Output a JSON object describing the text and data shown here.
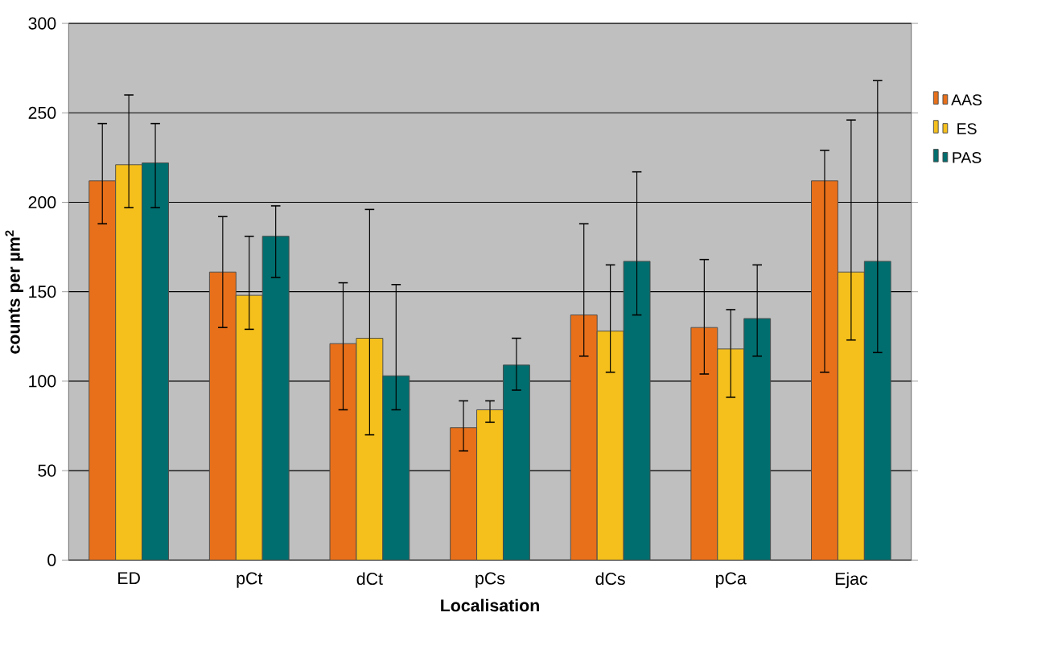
{
  "chart_data": {
    "type": "bar",
    "xlabel": "Localisation",
    "ylabel": "counts per µm$^{2}$",
    "categories": [
      "ED",
      "pCt",
      "dCt",
      "pCs",
      "dCs",
      "pCa",
      "Ejac"
    ],
    "series": [
      {
        "name": "AAS",
        "color": "#e8701a",
        "values": [
          212,
          161,
          121,
          74,
          137,
          130,
          212
        ],
        "errors": [
          [
            188,
            244
          ],
          [
            130,
            192
          ],
          [
            84,
            155
          ],
          [
            61,
            89
          ],
          [
            114,
            188
          ],
          [
            104,
            168
          ],
          [
            105,
            229
          ]
        ]
      },
      {
        "name": "ES",
        "color": "#f5c01c",
        "values": [
          221,
          148,
          124,
          84,
          128,
          118,
          161
        ],
        "errors": [
          [
            197,
            260
          ],
          [
            129,
            181
          ],
          [
            70,
            196
          ],
          [
            77,
            89
          ],
          [
            105,
            165
          ],
          [
            91,
            140
          ],
          [
            123,
            246
          ]
        ]
      },
      {
        "name": "PAS",
        "color": "#006e6e",
        "values": [
          222,
          181,
          103,
          109,
          167,
          135,
          167
        ],
        "errors": [
          [
            197,
            244
          ],
          [
            158,
            198
          ],
          [
            84,
            154
          ],
          [
            95,
            124
          ],
          [
            137,
            217
          ],
          [
            114,
            165
          ],
          [
            116,
            268
          ]
        ]
      }
    ],
    "ylim": [
      0,
      300
    ],
    "yticks": [
      0,
      50,
      100,
      150,
      200,
      250,
      300
    ],
    "grid": "y",
    "legend": "right"
  }
}
